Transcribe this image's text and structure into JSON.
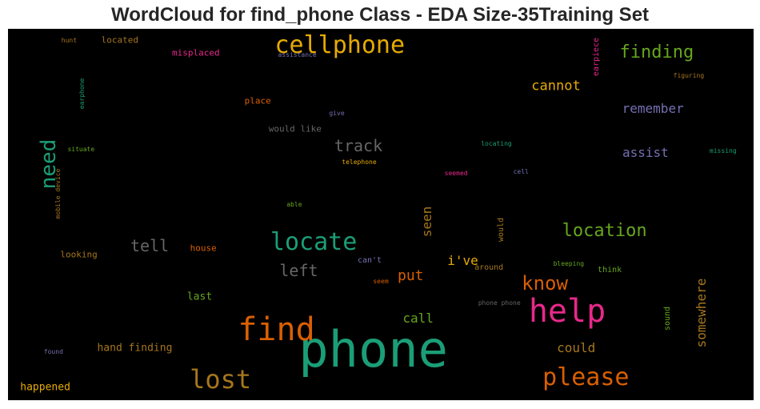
{
  "chart_data": {
    "type": "wordcloud",
    "title": "WordCloud for find_phone Class - EDA Size-35Training Set",
    "background": "#000000",
    "words": [
      {
        "text": "phone",
        "size": 62,
        "color": "#1b9e77",
        "x": 0.49,
        "y": 0.865,
        "rotate": 0
      },
      {
        "text": "help",
        "size": 40,
        "color": "#e7298a",
        "x": 0.75,
        "y": 0.76,
        "rotate": 0
      },
      {
        "text": "find",
        "size": 40,
        "color": "#d95f02",
        "x": 0.36,
        "y": 0.81,
        "rotate": 0
      },
      {
        "text": "cellphone",
        "size": 30,
        "color": "#e6ab02",
        "x": 0.445,
        "y": 0.045,
        "rotate": 0
      },
      {
        "text": "locate",
        "size": 30,
        "color": "#1b9e77",
        "x": 0.41,
        "y": 0.575,
        "rotate": 0
      },
      {
        "text": "lost",
        "size": 32,
        "color": "#a6761d",
        "x": 0.285,
        "y": 0.945,
        "rotate": 0
      },
      {
        "text": "please",
        "size": 30,
        "color": "#d95f02",
        "x": 0.775,
        "y": 0.94,
        "rotate": 0
      },
      {
        "text": "need",
        "size": 26,
        "color": "#1b9e77",
        "x": 0.055,
        "y": 0.365,
        "rotate": -90
      },
      {
        "text": "know",
        "size": 24,
        "color": "#d95f02",
        "x": 0.72,
        "y": 0.685,
        "rotate": 0
      },
      {
        "text": "location",
        "size": 22,
        "color": "#66a61e",
        "x": 0.8,
        "y": 0.545,
        "rotate": 0
      },
      {
        "text": "finding",
        "size": 22,
        "color": "#66a61e",
        "x": 0.87,
        "y": 0.065,
        "rotate": 0
      },
      {
        "text": "track",
        "size": 20,
        "color": "#666666",
        "x": 0.47,
        "y": 0.315,
        "rotate": 0
      },
      {
        "text": "tell",
        "size": 20,
        "color": "#666666",
        "x": 0.19,
        "y": 0.585,
        "rotate": 0
      },
      {
        "text": "left",
        "size": 20,
        "color": "#666666",
        "x": 0.39,
        "y": 0.65,
        "rotate": 0
      },
      {
        "text": "cannot",
        "size": 17,
        "color": "#e6ab02",
        "x": 0.735,
        "y": 0.155,
        "rotate": 0
      },
      {
        "text": "remember",
        "size": 16,
        "color": "#7570b3",
        "x": 0.865,
        "y": 0.215,
        "rotate": 0
      },
      {
        "text": "assist",
        "size": 16,
        "color": "#7570b3",
        "x": 0.855,
        "y": 0.335,
        "rotate": 0
      },
      {
        "text": "put",
        "size": 18,
        "color": "#d95f02",
        "x": 0.54,
        "y": 0.665,
        "rotate": 0
      },
      {
        "text": "i've",
        "size": 16,
        "color": "#e6ab02",
        "x": 0.61,
        "y": 0.625,
        "rotate": 0
      },
      {
        "text": "seen",
        "size": 16,
        "color": "#a6761d",
        "x": 0.562,
        "y": 0.52,
        "rotate": -90
      },
      {
        "text": "somewhere",
        "size": 16,
        "color": "#a6761d",
        "x": 0.93,
        "y": 0.765,
        "rotate": -90
      },
      {
        "text": "call",
        "size": 16,
        "color": "#66a61e",
        "x": 0.55,
        "y": 0.78,
        "rotate": 0
      },
      {
        "text": "could",
        "size": 16,
        "color": "#a6761d",
        "x": 0.762,
        "y": 0.86,
        "rotate": 0
      },
      {
        "text": "hand finding",
        "size": 13,
        "color": "#a6761d",
        "x": 0.17,
        "y": 0.86,
        "rotate": 0
      },
      {
        "text": "happened",
        "size": 13,
        "color": "#e6ab02",
        "x": 0.05,
        "y": 0.965,
        "rotate": 0
      },
      {
        "text": "last",
        "size": 13,
        "color": "#66a61e",
        "x": 0.257,
        "y": 0.722,
        "rotate": 0
      },
      {
        "text": "located",
        "size": 11,
        "color": "#a6761d",
        "x": 0.15,
        "y": 0.03,
        "rotate": 0
      },
      {
        "text": "misplaced",
        "size": 11,
        "color": "#e7298a",
        "x": 0.252,
        "y": 0.065,
        "rotate": 0
      },
      {
        "text": "place",
        "size": 11,
        "color": "#d95f02",
        "x": 0.335,
        "y": 0.195,
        "rotate": 0
      },
      {
        "text": "would like",
        "size": 11,
        "color": "#666666",
        "x": 0.385,
        "y": 0.27,
        "rotate": 0
      },
      {
        "text": "looking",
        "size": 11,
        "color": "#a6761d",
        "x": 0.095,
        "y": 0.607,
        "rotate": 0
      },
      {
        "text": "house",
        "size": 11,
        "color": "#d95f02",
        "x": 0.262,
        "y": 0.59,
        "rotate": 0
      },
      {
        "text": "can't",
        "size": 10,
        "color": "#7570b3",
        "x": 0.485,
        "y": 0.625,
        "rotate": 0
      },
      {
        "text": "around",
        "size": 10,
        "color": "#a6761d",
        "x": 0.645,
        "y": 0.645,
        "rotate": 0
      },
      {
        "text": "think",
        "size": 10,
        "color": "#66a61e",
        "x": 0.807,
        "y": 0.65,
        "rotate": 0
      },
      {
        "text": "would",
        "size": 10,
        "color": "#a6761d",
        "x": 0.662,
        "y": 0.54,
        "rotate": -90
      },
      {
        "text": "sound",
        "size": 10,
        "color": "#66a61e",
        "x": 0.885,
        "y": 0.78,
        "rotate": -90
      },
      {
        "text": "earpiece",
        "size": 10,
        "color": "#e7298a",
        "x": 0.79,
        "y": 0.075,
        "rotate": -90
      },
      {
        "text": "earphone",
        "size": 8,
        "color": "#1b9e77",
        "x": 0.1,
        "y": 0.175,
        "rotate": -90
      },
      {
        "text": "mobile device",
        "size": 8,
        "color": "#a6761d",
        "x": 0.068,
        "y": 0.445,
        "rotate": -90
      },
      {
        "text": "hunt",
        "size": 8,
        "color": "#a6761d",
        "x": 0.082,
        "y": 0.032,
        "rotate": 0
      },
      {
        "text": "assistance",
        "size": 8,
        "color": "#7570b3",
        "x": 0.388,
        "y": 0.072,
        "rotate": 0
      },
      {
        "text": "figuring",
        "size": 8,
        "color": "#a6761d",
        "x": 0.913,
        "y": 0.128,
        "rotate": 0
      },
      {
        "text": "give",
        "size": 8,
        "color": "#7570b3",
        "x": 0.441,
        "y": 0.228,
        "rotate": 0
      },
      {
        "text": "situate",
        "size": 8,
        "color": "#66a61e",
        "x": 0.098,
        "y": 0.325,
        "rotate": 0
      },
      {
        "text": "telephone",
        "size": 8,
        "color": "#e6ab02",
        "x": 0.471,
        "y": 0.36,
        "rotate": 0
      },
      {
        "text": "locating",
        "size": 8,
        "color": "#1b9e77",
        "x": 0.655,
        "y": 0.31,
        "rotate": 0
      },
      {
        "text": "missing",
        "size": 8,
        "color": "#1b9e77",
        "x": 0.959,
        "y": 0.33,
        "rotate": 0
      },
      {
        "text": "seemed",
        "size": 8,
        "color": "#e7298a",
        "x": 0.601,
        "y": 0.39,
        "rotate": 0
      },
      {
        "text": "cell",
        "size": 8,
        "color": "#7570b3",
        "x": 0.688,
        "y": 0.385,
        "rotate": 0
      },
      {
        "text": "able",
        "size": 8,
        "color": "#66a61e",
        "x": 0.384,
        "y": 0.474,
        "rotate": 0
      },
      {
        "text": "bleeping",
        "size": 8,
        "color": "#66a61e",
        "x": 0.752,
        "y": 0.633,
        "rotate": 0
      },
      {
        "text": "seem",
        "size": 8,
        "color": "#d95f02",
        "x": 0.5,
        "y": 0.68,
        "rotate": 0
      },
      {
        "text": "phone phone",
        "size": 8,
        "color": "#666666",
        "x": 0.659,
        "y": 0.74,
        "rotate": 0
      },
      {
        "text": "found",
        "size": 8,
        "color": "#7570b3",
        "x": 0.061,
        "y": 0.87,
        "rotate": 0
      }
    ]
  }
}
